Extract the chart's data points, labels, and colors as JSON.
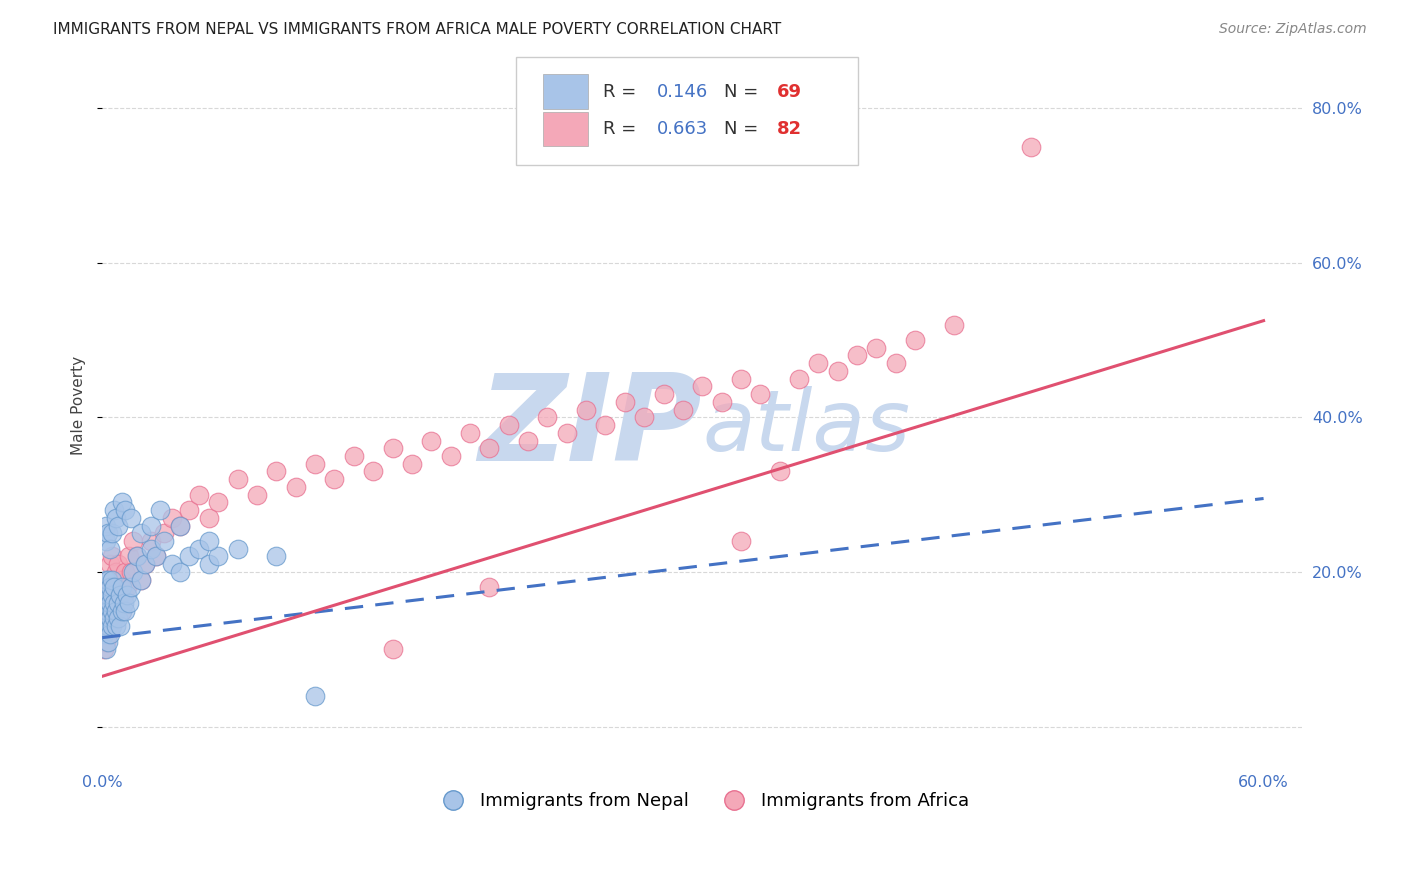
{
  "title": "IMMIGRANTS FROM NEPAL VS IMMIGRANTS FROM AFRICA MALE POVERTY CORRELATION CHART",
  "source": "Source: ZipAtlas.com",
  "ylabel": "Male Poverty",
  "xlim": [
    0.0,
    0.62
  ],
  "ylim": [
    -0.05,
    0.88
  ],
  "xtick_positions": [
    0.0,
    0.1,
    0.2,
    0.3,
    0.4,
    0.5,
    0.6
  ],
  "xticklabels": [
    "0.0%",
    "",
    "",
    "",
    "",
    "",
    "60.0%"
  ],
  "ytick_positions": [
    0.0,
    0.2,
    0.4,
    0.6,
    0.8
  ],
  "yticklabels_right": [
    "",
    "20.0%",
    "40.0%",
    "60.0%",
    "80.0%"
  ],
  "nepal_R": 0.146,
  "nepal_N": 69,
  "africa_R": 0.663,
  "africa_N": 82,
  "nepal_color": "#a8c4e8",
  "africa_color": "#f4a8b8",
  "nepal_edge_color": "#6699cc",
  "africa_edge_color": "#e87090",
  "nepal_trend_color": "#4472c4",
  "africa_trend_color": "#e05070",
  "watermark_color": "#c8d8ee",
  "grid_color": "#d8d8d8",
  "background_color": "#ffffff",
  "title_fontsize": 11,
  "axis_label_fontsize": 11,
  "tick_fontsize": 11.5,
  "legend_fontsize": 13,
  "source_fontsize": 10,
  "R_label_color": "#333333",
  "RN_value_color": "#4472c4",
  "N_number_color": "#e03030",
  "nepal_trend_start_y": 0.115,
  "nepal_trend_end_y": 0.295,
  "africa_trend_start_y": 0.065,
  "africa_trend_end_y": 0.525,
  "nepal_x": [
    0.001,
    0.001,
    0.001,
    0.002,
    0.002,
    0.002,
    0.002,
    0.002,
    0.003,
    0.003,
    0.003,
    0.003,
    0.003,
    0.004,
    0.004,
    0.004,
    0.004,
    0.005,
    0.005,
    0.005,
    0.005,
    0.006,
    0.006,
    0.006,
    0.007,
    0.007,
    0.008,
    0.008,
    0.009,
    0.009,
    0.01,
    0.01,
    0.011,
    0.012,
    0.013,
    0.014,
    0.015,
    0.016,
    0.018,
    0.02,
    0.022,
    0.025,
    0.028,
    0.032,
    0.036,
    0.04,
    0.045,
    0.05,
    0.055,
    0.06,
    0.002,
    0.002,
    0.003,
    0.004,
    0.005,
    0.006,
    0.007,
    0.008,
    0.01,
    0.012,
    0.015,
    0.02,
    0.025,
    0.03,
    0.04,
    0.055,
    0.07,
    0.09,
    0.11
  ],
  "nepal_y": [
    0.12,
    0.14,
    0.16,
    0.1,
    0.13,
    0.15,
    0.17,
    0.19,
    0.11,
    0.13,
    0.15,
    0.17,
    0.19,
    0.12,
    0.14,
    0.16,
    0.18,
    0.13,
    0.15,
    0.17,
    0.19,
    0.14,
    0.16,
    0.18,
    0.13,
    0.15,
    0.14,
    0.16,
    0.13,
    0.17,
    0.15,
    0.18,
    0.16,
    0.15,
    0.17,
    0.16,
    0.18,
    0.2,
    0.22,
    0.19,
    0.21,
    0.23,
    0.22,
    0.24,
    0.21,
    0.2,
    0.22,
    0.23,
    0.21,
    0.22,
    0.24,
    0.26,
    0.25,
    0.23,
    0.25,
    0.28,
    0.27,
    0.26,
    0.29,
    0.28,
    0.27,
    0.25,
    0.26,
    0.28,
    0.26,
    0.24,
    0.23,
    0.22,
    0.04
  ],
  "africa_x": [
    0.001,
    0.001,
    0.002,
    0.002,
    0.002,
    0.003,
    0.003,
    0.003,
    0.004,
    0.004,
    0.004,
    0.005,
    0.005,
    0.005,
    0.006,
    0.006,
    0.007,
    0.007,
    0.008,
    0.008,
    0.009,
    0.01,
    0.01,
    0.011,
    0.012,
    0.013,
    0.014,
    0.015,
    0.016,
    0.018,
    0.02,
    0.022,
    0.025,
    0.028,
    0.032,
    0.036,
    0.04,
    0.045,
    0.05,
    0.055,
    0.06,
    0.07,
    0.08,
    0.09,
    0.1,
    0.11,
    0.12,
    0.13,
    0.14,
    0.15,
    0.16,
    0.17,
    0.18,
    0.19,
    0.2,
    0.21,
    0.22,
    0.23,
    0.24,
    0.25,
    0.26,
    0.27,
    0.28,
    0.29,
    0.3,
    0.31,
    0.32,
    0.33,
    0.34,
    0.35,
    0.36,
    0.37,
    0.38,
    0.39,
    0.4,
    0.41,
    0.33,
    0.15,
    0.2,
    0.42,
    0.44,
    0.48
  ],
  "africa_y": [
    0.1,
    0.14,
    0.11,
    0.15,
    0.18,
    0.12,
    0.16,
    0.19,
    0.13,
    0.17,
    0.21,
    0.14,
    0.18,
    0.22,
    0.15,
    0.19,
    0.16,
    0.2,
    0.17,
    0.21,
    0.18,
    0.15,
    0.19,
    0.17,
    0.2,
    0.18,
    0.22,
    0.2,
    0.24,
    0.22,
    0.19,
    0.21,
    0.24,
    0.22,
    0.25,
    0.27,
    0.26,
    0.28,
    0.3,
    0.27,
    0.29,
    0.32,
    0.3,
    0.33,
    0.31,
    0.34,
    0.32,
    0.35,
    0.33,
    0.36,
    0.34,
    0.37,
    0.35,
    0.38,
    0.36,
    0.39,
    0.37,
    0.4,
    0.38,
    0.41,
    0.39,
    0.42,
    0.4,
    0.43,
    0.41,
    0.44,
    0.42,
    0.45,
    0.43,
    0.33,
    0.45,
    0.47,
    0.46,
    0.48,
    0.49,
    0.47,
    0.24,
    0.1,
    0.18,
    0.5,
    0.52,
    0.75
  ]
}
